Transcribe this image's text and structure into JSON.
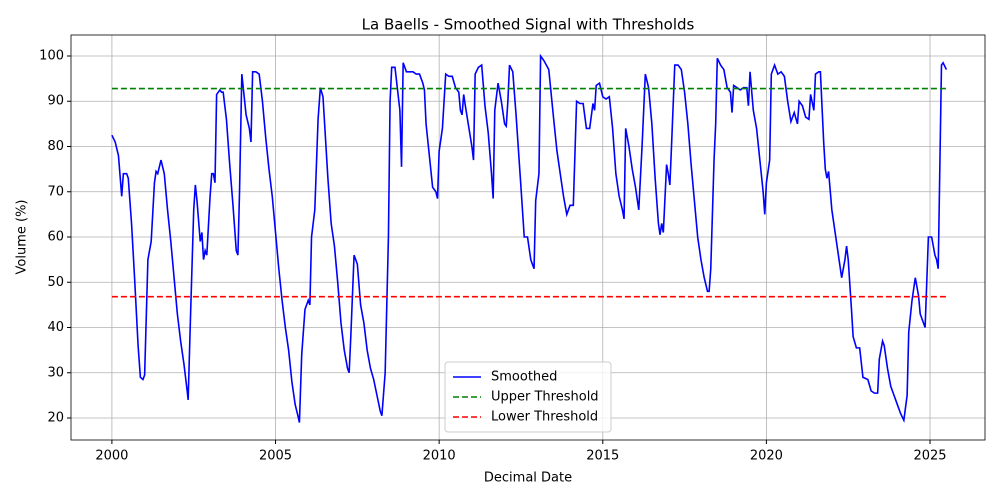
{
  "chart_data": {
    "type": "line",
    "title": "La Baells - Smoothed Signal with Thresholds",
    "xlabel": "Decimal Date",
    "ylabel": "Volume (%)",
    "xlim": [
      1998.75,
      2026.68
    ],
    "ylim": [
      15.14,
      104.64
    ],
    "xticks": [
      2000,
      2005,
      2010,
      2015,
      2020,
      2025
    ],
    "yticks": [
      20,
      30,
      40,
      50,
      60,
      70,
      80,
      90,
      100
    ],
    "grid": true,
    "legend": "lower center",
    "x": [
      2000.0,
      2000.1,
      2000.2,
      2000.3,
      2000.35,
      2000.45,
      2000.5,
      2000.6,
      2000.7,
      2000.8,
      2000.87,
      2000.95,
      2001.0,
      2001.1,
      2001.2,
      2001.3,
      2001.35,
      2001.4,
      2001.5,
      2001.6,
      2001.7,
      2001.8,
      2001.9,
      2002.0,
      2002.1,
      2002.2,
      2002.3,
      2002.33,
      2002.4,
      2002.5,
      2002.55,
      2002.6,
      2002.7,
      2002.75,
      2002.8,
      2002.85,
      2002.9,
      2003.0,
      2003.05,
      2003.1,
      2003.15,
      2003.2,
      2003.3,
      2003.35,
      2003.4,
      2003.5,
      2003.6,
      2003.7,
      2003.8,
      2003.85,
      2003.9,
      2003.97,
      2004.1,
      2004.2,
      2004.25,
      2004.3,
      2004.4,
      2004.5,
      2004.6,
      2004.7,
      2004.8,
      2004.9,
      2005.0,
      2005.1,
      2005.2,
      2005.3,
      2005.4,
      2005.5,
      2005.6,
      2005.7,
      2005.73,
      2005.8,
      2005.9,
      2006.0,
      2006.05,
      2006.1,
      2006.2,
      2006.3,
      2006.37,
      2006.45,
      2006.5,
      2006.6,
      2006.7,
      2006.8,
      2006.9,
      2007.0,
      2007.1,
      2007.2,
      2007.25,
      2007.3,
      2007.4,
      2007.5,
      2007.6,
      2007.7,
      2007.8,
      2007.9,
      2008.0,
      2008.1,
      2008.2,
      2008.25,
      2008.35,
      2008.45,
      2008.5,
      2008.55,
      2008.65,
      2008.8,
      2008.85,
      2008.9,
      2009.0,
      2009.1,
      2009.2,
      2009.3,
      2009.4,
      2009.5,
      2009.55,
      2009.6,
      2009.7,
      2009.8,
      2009.9,
      2009.95,
      2010.0,
      2010.1,
      2010.2,
      2010.3,
      2010.4,
      2010.5,
      2010.6,
      2010.65,
      2010.7,
      2010.75,
      2010.8,
      2010.9,
      2011.0,
      2011.05,
      2011.1,
      2011.2,
      2011.3,
      2011.4,
      2011.5,
      2011.6,
      2011.65,
      2011.7,
      2011.8,
      2011.9,
      2012.0,
      2012.05,
      2012.1,
      2012.15,
      2012.25,
      2012.35,
      2012.5,
      2012.6,
      2012.7,
      2012.8,
      2012.9,
      2012.95,
      2013.05,
      2013.1,
      2013.2,
      2013.35,
      2013.5,
      2013.6,
      2013.7,
      2013.8,
      2013.9,
      2014.0,
      2014.1,
      2014.2,
      2014.3,
      2014.4,
      2014.5,
      2014.6,
      2014.7,
      2014.75,
      2014.8,
      2014.9,
      2015.0,
      2015.1,
      2015.2,
      2015.3,
      2015.4,
      2015.5,
      2015.6,
      2015.65,
      2015.7,
      2015.8,
      2015.9,
      2016.0,
      2016.1,
      2016.2,
      2016.3,
      2016.4,
      2016.5,
      2016.6,
      2016.7,
      2016.75,
      2016.8,
      2016.85,
      2016.95,
      2017.0,
      2017.05,
      2017.1,
      2017.2,
      2017.3,
      2017.4,
      2017.5,
      2017.6,
      2017.7,
      2017.8,
      2017.9,
      2018.0,
      2018.1,
      2018.2,
      2018.25,
      2018.3,
      2018.4,
      2018.45,
      2018.5,
      2018.6,
      2018.7,
      2018.8,
      2018.9,
      2018.95,
      2019.0,
      2019.1,
      2019.2,
      2019.3,
      2019.4,
      2019.45,
      2019.5,
      2019.6,
      2019.7,
      2019.8,
      2019.9,
      2019.95,
      2020.0,
      2020.1,
      2020.15,
      2020.25,
      2020.35,
      2020.45,
      2020.55,
      2020.65,
      2020.75,
      2020.85,
      2020.95,
      2021.0,
      2021.1,
      2021.2,
      2021.3,
      2021.35,
      2021.45,
      2021.5,
      2021.6,
      2021.65,
      2021.75,
      2021.8,
      2021.85,
      2021.9,
      2022.0,
      2022.1,
      2022.2,
      2022.3,
      2022.4,
      2022.45,
      2022.5,
      2022.6,
      2022.65,
      2022.75,
      2022.85,
      2022.95,
      2023.1,
      2023.2,
      2023.3,
      2023.4,
      2023.45,
      2023.55,
      2023.6,
      2023.7,
      2023.8,
      2023.9,
      2024.0,
      2024.1,
      2024.2,
      2024.3,
      2024.35,
      2024.45,
      2024.55,
      2024.65,
      2024.7,
      2024.8,
      2024.85,
      2024.95,
      2025.05,
      2025.15,
      2025.2,
      2025.25,
      2025.35,
      2025.4,
      2025.5
    ],
    "series": [
      {
        "name": "Smoothed",
        "color": "#0000ff",
        "style": "solid",
        "values": [
          82.5,
          81,
          78,
          69,
          74,
          74,
          73,
          63,
          50,
          36,
          29,
          28.5,
          29.5,
          55,
          59,
          72,
          74.5,
          74,
          77,
          74,
          66,
          59,
          51,
          43,
          37,
          32,
          26,
          24,
          42,
          66,
          71.5,
          68,
          59,
          61,
          55,
          57,
          56,
          69,
          74,
          74,
          72,
          91.5,
          92.5,
          92,
          92,
          86,
          76,
          67,
          57,
          56,
          70,
          96,
          87,
          84,
          81,
          96.5,
          96.5,
          96,
          90,
          82,
          75,
          69,
          61,
          53,
          46,
          40,
          35,
          28,
          23,
          20,
          19,
          34,
          44,
          46,
          45,
          60,
          66,
          86,
          93,
          91,
          85,
          73,
          63,
          58,
          50,
          41,
          35,
          31,
          30,
          38,
          56,
          54,
          45,
          41,
          35,
          31,
          28.5,
          25,
          21.5,
          20.5,
          30,
          60,
          90,
          97.5,
          97.5,
          88,
          75.5,
          98.5,
          96.5,
          96.5,
          96.5,
          96,
          96,
          94,
          92.5,
          85,
          78,
          71,
          70,
          68.5,
          79,
          84,
          96,
          95.5,
          95.5,
          93,
          92,
          88,
          87,
          91.5,
          89,
          84.5,
          80,
          77,
          96,
          97.5,
          98,
          89,
          83,
          74,
          68.5,
          88,
          94,
          90,
          85,
          84.5,
          90,
          98,
          96.5,
          87,
          71,
          60,
          60,
          55,
          53,
          68,
          74,
          100,
          99,
          97,
          86,
          79,
          74,
          69,
          65,
          67,
          67,
          90,
          89.5,
          89.5,
          84,
          84,
          89.5,
          88,
          93.5,
          94,
          91,
          90.5,
          91,
          84,
          74,
          69,
          66,
          64,
          84,
          80,
          75,
          71,
          66,
          80,
          96,
          93,
          85,
          73,
          63,
          60.5,
          63,
          61,
          76,
          74,
          71.5,
          80,
          98,
          98,
          97,
          92,
          85,
          76,
          68,
          60,
          55,
          51,
          48,
          48,
          53,
          77,
          85,
          99.5,
          98,
          97,
          93,
          92,
          87.5,
          93.5,
          93,
          92.5,
          93,
          93,
          89,
          96.5,
          88,
          84,
          77,
          70,
          65,
          72,
          77,
          96,
          98,
          96,
          96.5,
          95.5,
          90,
          85.5,
          87.5,
          85,
          90,
          89,
          86.5,
          86,
          91.5,
          88,
          96,
          96.5,
          96.5,
          81,
          75,
          73,
          74.5,
          66,
          61,
          56,
          51,
          55,
          58,
          55,
          44,
          38,
          35.5,
          35.5,
          29,
          28.5,
          26,
          25.5,
          25.5,
          33,
          37,
          36,
          31,
          27,
          25,
          23,
          21,
          19.5,
          25,
          39,
          46,
          51,
          47,
          43,
          41,
          40,
          60,
          60,
          56,
          55,
          53,
          98,
          98.5,
          97
        ]
      }
    ],
    "thresholds": [
      {
        "name": "Upper Threshold",
        "color": "#008000",
        "style": "dashed",
        "value": 92.8
      },
      {
        "name": "Lower Threshold",
        "color": "#ff0000",
        "style": "dashed",
        "value": 46.8
      }
    ]
  }
}
